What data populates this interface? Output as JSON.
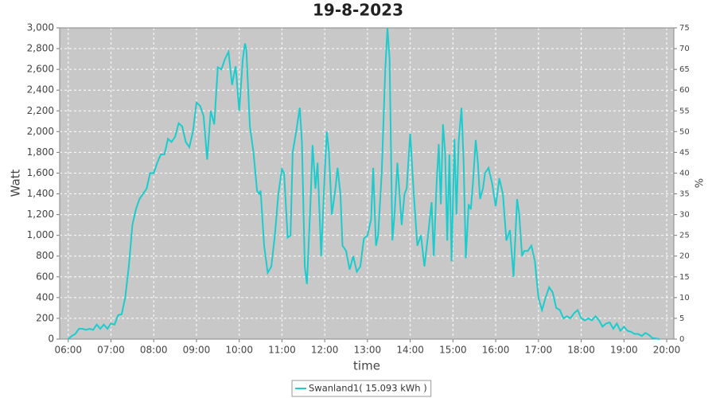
{
  "chart_data": {
    "type": "line",
    "title": "19-8-2023",
    "xlabel": "time",
    "ylabel": "Watt",
    "y2label": "%",
    "x": [
      "06:00",
      "06:05",
      "06:10",
      "06:15",
      "06:20",
      "06:25",
      "06:30",
      "06:35",
      "06:40",
      "06:45",
      "06:50",
      "06:55",
      "07:00",
      "07:05",
      "07:10",
      "07:15",
      "07:20",
      "07:25",
      "07:30",
      "07:35",
      "07:40",
      "07:45",
      "07:50",
      "07:55",
      "08:00",
      "08:05",
      "08:10",
      "08:15",
      "08:20",
      "08:25",
      "08:30",
      "08:35",
      "08:40",
      "08:45",
      "08:50",
      "08:55",
      "09:00",
      "09:05",
      "09:10",
      "09:15",
      "09:20",
      "09:25",
      "09:30",
      "09:35",
      "09:40",
      "09:45",
      "09:50",
      "09:55",
      "10:00",
      "10:05",
      "10:08",
      "10:10",
      "10:15",
      "10:20",
      "10:25",
      "10:28",
      "10:30",
      "10:35",
      "10:40",
      "10:45",
      "10:50",
      "10:55",
      "11:00",
      "11:03",
      "11:08",
      "11:12",
      "11:15",
      "11:20",
      "11:25",
      "11:28",
      "11:32",
      "11:35",
      "11:40",
      "11:43",
      "11:47",
      "11:50",
      "11:55",
      "12:00",
      "12:03",
      "12:06",
      "12:10",
      "12:15",
      "12:18",
      "12:22",
      "12:25",
      "12:30",
      "12:35",
      "12:40",
      "12:45",
      "12:50",
      "12:55",
      "13:00",
      "13:05",
      "13:08",
      "13:12",
      "13:15",
      "13:20",
      "13:25",
      "13:28",
      "13:31",
      "13:35",
      "13:38",
      "13:42",
      "13:45",
      "13:48",
      "13:52",
      "13:55",
      "14:00",
      "14:05",
      "14:10",
      "14:15",
      "14:20",
      "14:25",
      "14:30",
      "14:33",
      "14:37",
      "14:40",
      "14:43",
      "14:46",
      "14:49",
      "14:52",
      "14:55",
      "14:58",
      "15:02",
      "15:05",
      "15:08",
      "15:12",
      "15:15",
      "15:18",
      "15:22",
      "15:25",
      "15:28",
      "15:32",
      "15:35",
      "15:38",
      "15:42",
      "15:45",
      "15:50",
      "15:55",
      "16:00",
      "16:05",
      "16:10",
      "16:15",
      "16:20",
      "16:25",
      "16:30",
      "16:33",
      "16:37",
      "16:40",
      "16:45",
      "16:50",
      "16:55",
      "17:00",
      "17:05",
      "17:10",
      "17:15",
      "17:20",
      "17:25",
      "17:30",
      "17:35",
      "17:40",
      "17:45",
      "17:50",
      "17:55",
      "18:00",
      "18:05",
      "18:10",
      "18:15",
      "18:20",
      "18:25",
      "18:30",
      "18:35",
      "18:40",
      "18:45",
      "18:50",
      "18:55",
      "19:00",
      "19:05",
      "19:10",
      "19:15",
      "19:20",
      "19:25",
      "19:30",
      "19:35",
      "19:40",
      "19:45",
      "19:50"
    ],
    "series": [
      {
        "name": "Swanland1( 15.093 kWh )",
        "color": "#1ccccc",
        "values": [
          0,
          30,
          50,
          100,
          100,
          90,
          100,
          90,
          140,
          100,
          140,
          100,
          150,
          140,
          230,
          240,
          400,
          700,
          1100,
          1250,
          1350,
          1400,
          1450,
          1600,
          1600,
          1700,
          1780,
          1780,
          1930,
          1900,
          1950,
          2080,
          2050,
          1900,
          1850,
          2000,
          2280,
          2250,
          2150,
          1730,
          2200,
          2070,
          2620,
          2600,
          2700,
          2770,
          2450,
          2630,
          2200,
          2700,
          2850,
          2800,
          2050,
          1800,
          1430,
          1400,
          1430,
          900,
          640,
          700,
          1000,
          1400,
          1640,
          1600,
          980,
          1000,
          1800,
          2000,
          2230,
          1900,
          700,
          530,
          1300,
          1870,
          1450,
          1700,
          800,
          1600,
          2000,
          1800,
          1200,
          1450,
          1650,
          1400,
          900,
          850,
          670,
          800,
          650,
          700,
          970,
          1000,
          1150,
          1650,
          900,
          1000,
          1600,
          2600,
          3000,
          2700,
          950,
          1200,
          1700,
          1400,
          1100,
          1400,
          1450,
          1980,
          1400,
          900,
          1000,
          700,
          1000,
          1320,
          800,
          1500,
          1880,
          1300,
          2070,
          1800,
          950,
          1780,
          750,
          1930,
          1200,
          1900,
          2230,
          1700,
          780,
          1300,
          1250,
          1500,
          1920,
          1700,
          1350,
          1450,
          1600,
          1650,
          1500,
          1280,
          1550,
          1400,
          950,
          1050,
          600,
          1350,
          1200,
          800,
          850,
          850,
          900,
          750,
          400,
          280,
          400,
          500,
          450,
          300,
          280,
          200,
          220,
          200,
          250,
          280,
          200,
          180,
          200,
          180,
          220,
          180,
          120,
          150,
          160,
          100,
          150,
          80,
          120,
          80,
          70,
          50,
          50,
          30,
          60,
          40,
          10,
          5,
          0
        ]
      }
    ],
    "xlim": [
      "05:48",
      "20:10"
    ],
    "xticks": [
      "06:00",
      "07:00",
      "08:00",
      "09:00",
      "10:00",
      "11:00",
      "12:00",
      "13:00",
      "14:00",
      "15:00",
      "16:00",
      "17:00",
      "18:00",
      "19:00",
      "20:00"
    ],
    "ylim": [
      0,
      3000
    ],
    "yticks": [
      0,
      200,
      400,
      600,
      800,
      {
        "value": 1000,
        "label": "1,000"
      },
      {
        "value": 1200,
        "label": "1,200"
      },
      {
        "value": 1400,
        "label": "1,400"
      },
      {
        "value": 1600,
        "label": "1,600"
      },
      {
        "value": 1800,
        "label": "1,800"
      },
      {
        "value": 2000,
        "label": "2,000"
      },
      {
        "value": 2200,
        "label": "2,200"
      },
      {
        "value": 2400,
        "label": "2,400"
      },
      {
        "value": 2600,
        "label": "2,600"
      },
      {
        "value": 2800,
        "label": "2,800"
      },
      {
        "value": 3000,
        "label": "3,000"
      }
    ],
    "y2lim": [
      0,
      75
    ],
    "y2ticks": [
      0,
      5,
      10,
      15,
      20,
      25,
      30,
      35,
      40,
      45,
      50,
      55,
      60,
      65,
      70,
      75
    ],
    "grid": true,
    "background": "#c8c8c8",
    "legend": "bottom"
  }
}
